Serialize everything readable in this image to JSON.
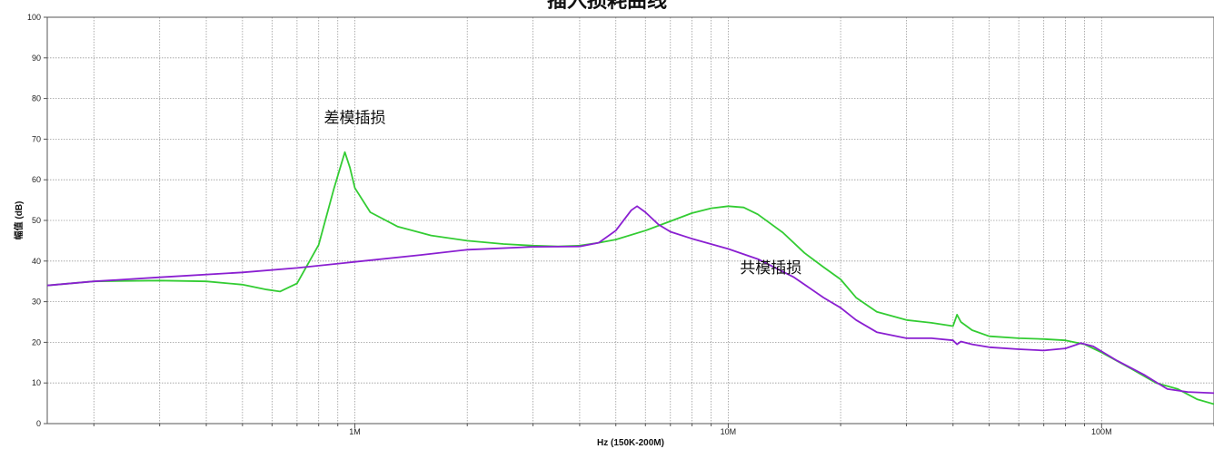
{
  "chart_data": {
    "type": "line",
    "title": "插入损耗曲线",
    "xlabel": "Hz  (150K-200M)",
    "ylabel": "幅值 (dB)",
    "xscale": "log",
    "xlim": [
      150000,
      200000000
    ],
    "ylim": [
      0,
      100
    ],
    "grid": true,
    "y_ticks": [
      0,
      10,
      20,
      30,
      40,
      50,
      60,
      70,
      80,
      90,
      100
    ],
    "x_tick_labels": [
      {
        "x": 1000000,
        "label": "1M"
      },
      {
        "x": 10000000,
        "label": "10M"
      },
      {
        "x": 100000000,
        "label": "100M"
      }
    ],
    "series": [
      {
        "name": "差模插损",
        "color": "#33cc33",
        "x": [
          150000,
          200000,
          300000,
          400000,
          500000,
          580000,
          630000,
          700000,
          800000,
          880000,
          940000,
          970000,
          1000000,
          1100000,
          1300000,
          1600000,
          2000000,
          2500000,
          3000000,
          3500000,
          4000000,
          4500000,
          5000000,
          6000000,
          7000000,
          8000000,
          9000000,
          10000000,
          11000000,
          12000000,
          14000000,
          16000000,
          18000000,
          20000000,
          22000000,
          25000000,
          30000000,
          35000000,
          40000000,
          41000000,
          42000000,
          45000000,
          50000000,
          60000000,
          70000000,
          80000000,
          90000000,
          100000000,
          120000000,
          140000000,
          160000000,
          180000000,
          200000000
        ],
        "values": [
          34.0,
          35.0,
          35.2,
          35.0,
          34.2,
          33.0,
          32.5,
          34.5,
          44.0,
          58.0,
          66.8,
          63.0,
          58.0,
          52.0,
          48.5,
          46.3,
          45.0,
          44.2,
          43.8,
          43.6,
          43.8,
          44.5,
          45.3,
          47.5,
          49.8,
          51.8,
          53.0,
          53.5,
          53.2,
          51.5,
          47.0,
          42.0,
          38.5,
          35.5,
          31.0,
          27.5,
          25.5,
          24.8,
          24.0,
          26.8,
          25.0,
          23.0,
          21.5,
          21.0,
          20.8,
          20.5,
          19.5,
          17.5,
          13.5,
          10.0,
          8.5,
          6.0,
          4.8
        ]
      },
      {
        "name": "共模插损",
        "color": "#8a1fd1",
        "x": [
          150000,
          200000,
          300000,
          500000,
          700000,
          1000000,
          1500000,
          2000000,
          3000000,
          4000000,
          4500000,
          5000000,
          5500000,
          5700000,
          6000000,
          6500000,
          7000000,
          8000000,
          10000000,
          12000000,
          15000000,
          18000000,
          20000000,
          22000000,
          25000000,
          30000000,
          35000000,
          40000000,
          41000000,
          42000000,
          45000000,
          50000000,
          60000000,
          70000000,
          80000000,
          88000000,
          95000000,
          110000000,
          130000000,
          150000000,
          170000000,
          200000000
        ],
        "values": [
          34.0,
          35.0,
          36.0,
          37.2,
          38.3,
          39.8,
          41.5,
          42.8,
          43.5,
          43.6,
          44.5,
          47.5,
          52.5,
          53.5,
          52.0,
          49.0,
          47.2,
          45.5,
          43.0,
          40.5,
          36.0,
          31.0,
          28.5,
          25.5,
          22.5,
          21.0,
          21.0,
          20.5,
          19.5,
          20.2,
          19.5,
          18.8,
          18.3,
          18.0,
          18.5,
          19.8,
          19.0,
          15.5,
          12.0,
          8.5,
          7.8,
          7.5
        ]
      }
    ],
    "annotations": [
      {
        "text": "差模插损",
        "x": 1000000,
        "y": 74
      },
      {
        "text": "共模插损",
        "x": 13000000,
        "y": 37
      }
    ]
  }
}
